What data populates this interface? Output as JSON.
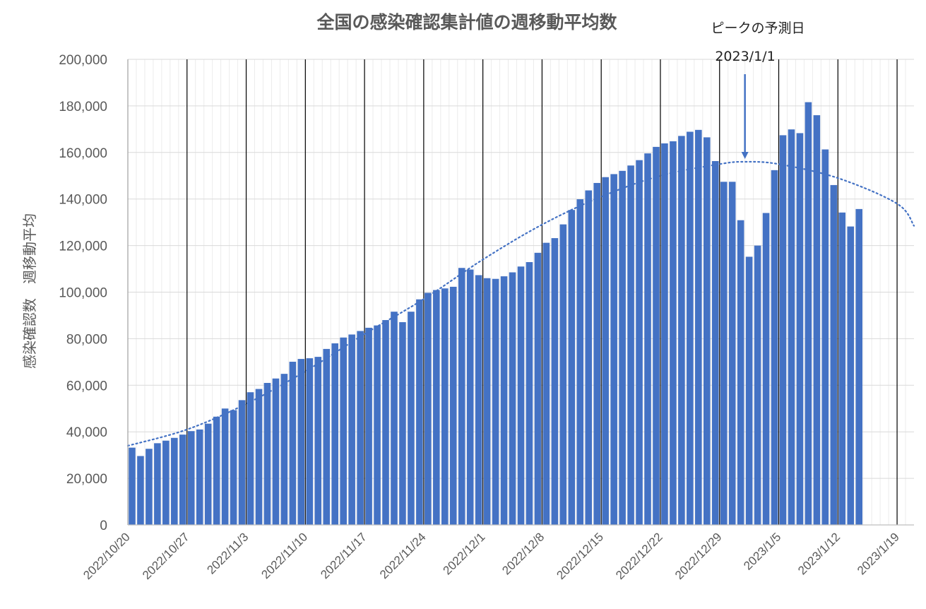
{
  "chart_data": {
    "type": "bar",
    "title": "全国の感染確認集計値の週移動平均数",
    "ylabel": "感染確認数　週移動平均",
    "xlabel": "",
    "ylim": [
      0,
      200000
    ],
    "yticks": [
      "0",
      "20,000",
      "40,000",
      "60,000",
      "80,000",
      "100,000",
      "120,000",
      "140,000",
      "160,000",
      "180,000",
      "200,000"
    ],
    "xticks": [
      "2022/10/20",
      "2022/10/27",
      "2022/11/3",
      "2022/11/10",
      "2022/11/17",
      "2022/11/24",
      "2022/12/1",
      "2022/12/8",
      "2022/12/15",
      "2022/12/22",
      "2022/12/29",
      "2023/1/5",
      "2023/1/12",
      "2023/1/19"
    ],
    "x_start_date": "2022/10/20",
    "x_end_date": "2023/1/21",
    "grid": "vertical major lines at weekly ticks, light gridlines for days and y values",
    "series": [
      {
        "type": "bar",
        "color": "#4472c4",
        "values": [
          33200,
          29600,
          32700,
          35100,
          36200,
          37400,
          38800,
          40300,
          41000,
          43500,
          46500,
          50000,
          49300,
          53600,
          57000,
          58400,
          61000,
          62900,
          64900,
          70100,
          71300,
          71600,
          72200,
          75600,
          78000,
          80500,
          81800,
          83300,
          84700,
          85700,
          88000,
          91600,
          87100,
          91600,
          96900,
          99700,
          100900,
          101600,
          102300,
          110400,
          109700,
          107300,
          106000,
          105700,
          106800,
          108500,
          111000,
          112900,
          116900,
          121200,
          123200,
          129100,
          135300,
          139900,
          143700,
          146900,
          149400,
          150700,
          152100,
          154400,
          156700,
          159600,
          162400,
          163900,
          164800,
          167100,
          168900,
          169700,
          166500,
          156300,
          147400,
          147400,
          130900,
          115200,
          120000,
          134000,
          152400,
          167400,
          169900,
          168300,
          181600,
          176000,
          161300,
          146000,
          134200,
          128200,
          135700
        ]
      },
      {
        "type": "trend",
        "style": "dotted",
        "color": "#4472c4",
        "x": [
          "2022/10/20",
          "2022/10/27",
          "2022/11/3",
          "2022/11/10",
          "2022/11/17",
          "2022/11/24",
          "2022/12/1",
          "2022/12/8",
          "2022/12/15",
          "2022/12/22",
          "2022/12/29",
          "2023/1/1",
          "2023/1/5",
          "2023/1/12",
          "2023/1/19",
          "2023/1/21"
        ],
        "values": [
          34000,
          41000,
          52000,
          66000,
          82000,
          97000,
          114000,
          129000,
          141000,
          150000,
          155000,
          156000,
          155000,
          149000,
          138000,
          128500
        ]
      }
    ],
    "annotations": [
      {
        "text": "ピークの予測日",
        "x": "2023/1/1"
      },
      {
        "text": "2023/1/1",
        "x": "2023/1/1",
        "arrow_to_value": 156000
      }
    ]
  }
}
